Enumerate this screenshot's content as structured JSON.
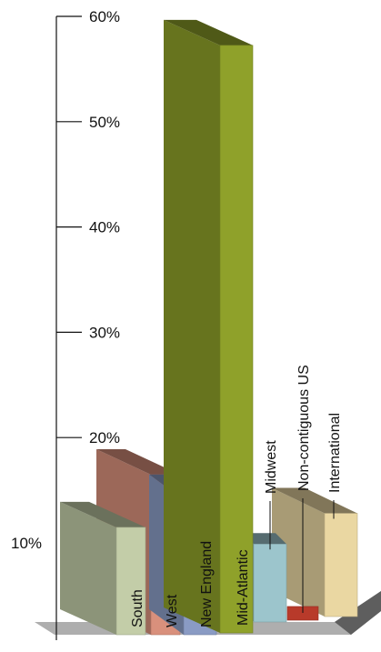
{
  "chart_data": {
    "type": "bar",
    "title": "",
    "xlabel": "",
    "ylabel": "",
    "ylim": [
      0,
      60
    ],
    "y_ticks": [
      "60%",
      "50%",
      "40%",
      "30%",
      "20%",
      "10%"
    ],
    "y_tick_values": [
      60,
      50,
      40,
      30,
      20,
      10
    ],
    "categories": [
      "South",
      "West",
      "New England",
      "Mid-Atlantic",
      "Midwest",
      "Non-contiguous US",
      "International"
    ],
    "values": [
      10.2,
      15.2,
      12.8,
      55.8,
      7.4,
      1.3,
      9.8
    ],
    "grid": false,
    "legend": "none",
    "style": "3d",
    "colors": {
      "South": "#c3cda8",
      "West": "#d9907c",
      "New England": "#8a9bc4",
      "Mid-Atlantic": "#8fa12a",
      "Midwest": "#9cc5cc",
      "Non-contiguous US": "#b83a2a",
      "International": "#ead7a2",
      "axis": "#111111",
      "floor": "#a0a0a0"
    }
  }
}
